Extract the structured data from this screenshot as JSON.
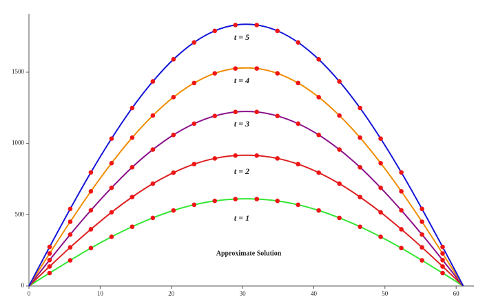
{
  "chart_data": {
    "type": "line",
    "annotation": "Approximate Solution",
    "x": [
      0,
      2.9,
      5.8,
      8.7,
      11.6,
      14.5,
      17.4,
      20.3,
      23.2,
      26.1,
      29,
      32,
      34.9,
      37.8,
      40.7,
      43.6,
      46.5,
      49.4,
      52.3,
      55.2,
      58.1,
      61
    ],
    "series": [
      {
        "name": "t = 1",
        "color": "#33e633",
        "values": [
          0,
          91,
          180,
          266,
          345,
          416,
          478,
          530,
          570,
          597,
          610,
          610,
          597,
          570,
          530,
          478,
          416,
          345,
          266,
          180,
          91,
          0
        ]
      },
      {
        "name": "t = 2",
        "color": "#dd2020",
        "values": [
          0,
          137,
          271,
          398,
          517,
          624,
          718,
          795,
          855,
          895,
          915,
          915,
          895,
          855,
          795,
          718,
          624,
          517,
          398,
          271,
          137,
          0
        ]
      },
      {
        "name": "t = 3",
        "color": "#8a108a",
        "values": [
          0,
          182,
          361,
          531,
          689,
          833,
          957,
          1060,
          1139,
          1193,
          1221,
          1221,
          1193,
          1139,
          1060,
          957,
          833,
          689,
          531,
          361,
          182,
          0
        ]
      },
      {
        "name": "t = 4",
        "color": "#f08c00",
        "values": [
          0,
          228,
          451,
          664,
          862,
          1041,
          1196,
          1325,
          1424,
          1492,
          1526,
          1526,
          1492,
          1424,
          1325,
          1196,
          1041,
          862,
          664,
          451,
          228,
          0
        ]
      },
      {
        "name": "t = 5",
        "color": "#1414d8",
        "values": [
          0,
          274,
          541,
          797,
          1034,
          1249,
          1435,
          1590,
          1709,
          1790,
          1831,
          1831,
          1790,
          1709,
          1590,
          1435,
          1249,
          1034,
          797,
          541,
          274,
          0
        ]
      }
    ],
    "marker_color": "#ee1515",
    "xlim": [
      0,
      62.5
    ],
    "ylim": [
      0,
      1910
    ],
    "xticks": [
      0,
      10,
      20,
      30,
      40,
      50,
      60
    ],
    "yticks": [
      0,
      500,
      1000,
      1500
    ]
  }
}
